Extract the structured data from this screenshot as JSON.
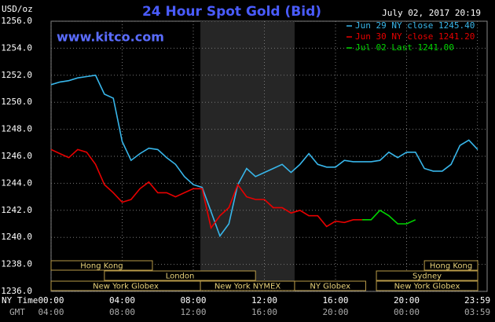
{
  "chart_data": {
    "type": "line",
    "title": "24 Hour Spot Gold (Bid)",
    "subtitle": "www.kitco.com",
    "y_label": "USD/oz",
    "timestamp": "July 02, 2017 20:19",
    "x_label": "NY Time",
    "x2_label": "GMT",
    "xlim": [
      0,
      24
    ],
    "xticks": [
      {
        "value": 0,
        "label": "00:00"
      },
      {
        "value": 4,
        "label": "04:00"
      },
      {
        "value": 8,
        "label": "08:00"
      },
      {
        "value": 12,
        "label": "12:00"
      },
      {
        "value": 16,
        "label": "16:00"
      },
      {
        "value": 20,
        "label": "20:00"
      },
      {
        "value": 23.983,
        "label": "23:59"
      }
    ],
    "x2ticklabels": [
      "04:00",
      "08:00",
      "12:00",
      "16:00",
      "20:00",
      "00:00",
      "03:59"
    ],
    "ylim": [
      1236,
      1256
    ],
    "yticks": [
      {
        "value": 1236,
        "label": "1236.0"
      },
      {
        "value": 1238,
        "label": "1238.0"
      },
      {
        "value": 1240,
        "label": "1240.0"
      },
      {
        "value": 1242,
        "label": "1242.0"
      },
      {
        "value": 1244,
        "label": "1244.0"
      },
      {
        "value": 1246,
        "label": "1246.0"
      },
      {
        "value": 1248,
        "label": "1248.0"
      },
      {
        "value": 1250,
        "label": "1250.0"
      },
      {
        "value": 1252,
        "label": "1252.0"
      },
      {
        "value": 1254,
        "label": "1254.0"
      },
      {
        "value": 1256,
        "label": "1256.0"
      }
    ],
    "grid": true,
    "highlight": [
      8.4,
      13.7
    ],
    "session_rows": [
      [
        {
          "label": "Hong Kong",
          "start": 0,
          "end": 5.7
        },
        {
          "label": "Hong Kong",
          "start": 21,
          "end": 24
        }
      ],
      [
        {
          "label": "London",
          "start": 3,
          "end": 11.5
        },
        {
          "label": "Sydney",
          "start": 18.3,
          "end": 24
        }
      ],
      [
        {
          "label": "New York Globex",
          "start": 0,
          "end": 8.4
        },
        {
          "label": "New York NYMEX",
          "start": 8.4,
          "end": 13.7
        },
        {
          "label": "NY Globex",
          "start": 13.7,
          "end": 17.7
        },
        {
          "label": "New York Globex",
          "start": 18.3,
          "end": 24
        }
      ]
    ],
    "x": [
      0,
      0.5,
      1,
      1.5,
      2,
      2.5,
      3,
      3.5,
      4,
      4.5,
      5,
      5.5,
      6,
      6.5,
      7,
      7.5,
      8,
      8.5,
      9,
      9.5,
      10,
      10.5,
      11,
      11.5,
      12,
      12.5,
      13,
      13.5,
      14,
      14.5,
      15,
      15.5,
      16,
      16.5,
      17,
      17.5,
      18,
      18.5,
      19,
      19.5,
      20,
      20.5,
      21,
      21.5,
      22,
      22.5,
      23,
      23.5,
      24
    ],
    "series": [
      {
        "name": "Jun 29 NY close 1245.40",
        "color": "#38b6ea",
        "values": [
          1251.3,
          1251.5,
          1251.6,
          1251.8,
          1251.9,
          1252.0,
          1250.6,
          1250.3,
          1247.1,
          1245.7,
          1246.2,
          1246.6,
          1246.5,
          1245.9,
          1245.4,
          1244.5,
          1243.9,
          1243.7,
          1241.9,
          1240.1,
          1241.0,
          1243.9,
          1245.1,
          1244.5,
          1244.8,
          1245.1,
          1245.4,
          1244.8,
          1245.4,
          1246.2,
          1245.4,
          1245.2,
          1245.2,
          1245.7,
          1245.6,
          1245.6,
          1245.6,
          1245.7,
          1246.3,
          1245.9,
          1246.3,
          1246.3,
          1245.1,
          1244.9,
          1244.9,
          1245.4,
          1246.8,
          1247.2,
          1246.5
        ]
      },
      {
        "name": "Jun 30 NY close 1241.20",
        "color": "#e80000",
        "values": [
          1246.5,
          1246.2,
          1245.9,
          1246.5,
          1246.3,
          1245.4,
          1243.9,
          1243.3,
          1242.6,
          1242.8,
          1243.6,
          1244.1,
          1243.3,
          1243.3,
          1243.0,
          1243.3,
          1243.6,
          1243.6,
          1240.7,
          1241.6,
          1242.2,
          1243.9,
          1243.0,
          1242.8,
          1242.8,
          1242.2,
          1242.2,
          1241.8,
          1242.0,
          1241.6,
          1241.6,
          1240.8,
          1241.2,
          1241.1,
          1241.3,
          1241.3,
          null,
          null,
          null,
          null,
          null,
          null,
          null,
          null,
          null,
          null,
          null,
          null,
          null
        ]
      },
      {
        "name": "Jul 02 Last 1241.00",
        "color": "#00d400",
        "values": [
          null,
          null,
          null,
          null,
          null,
          null,
          null,
          null,
          null,
          null,
          null,
          null,
          null,
          null,
          null,
          null,
          null,
          null,
          null,
          null,
          null,
          null,
          null,
          null,
          null,
          null,
          null,
          null,
          null,
          null,
          null,
          null,
          null,
          null,
          null,
          1241.3,
          1241.3,
          1242.0,
          1241.6,
          1241.0,
          1241.0,
          1241.3,
          null,
          null,
          null,
          null,
          null,
          null,
          null
        ]
      }
    ]
  }
}
